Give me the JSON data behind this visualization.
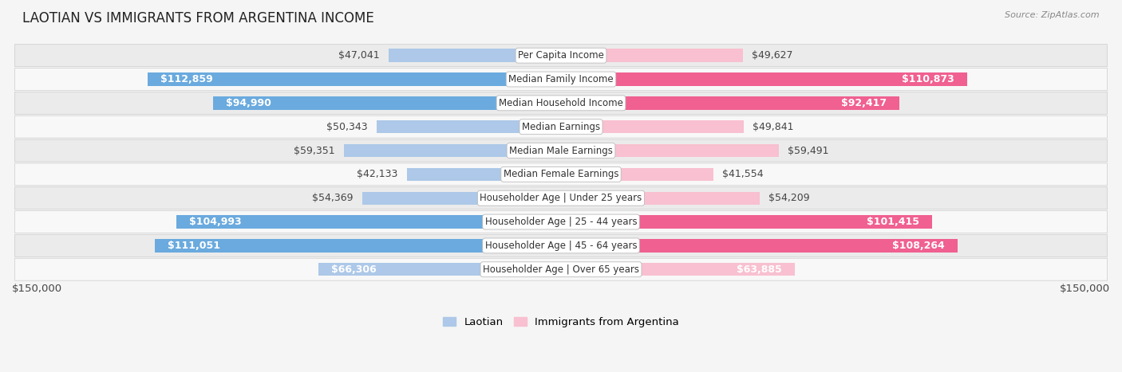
{
  "title": "LAOTIAN VS IMMIGRANTS FROM ARGENTINA INCOME",
  "source": "Source: ZipAtlas.com",
  "categories": [
    "Per Capita Income",
    "Median Family Income",
    "Median Household Income",
    "Median Earnings",
    "Median Male Earnings",
    "Median Female Earnings",
    "Householder Age | Under 25 years",
    "Householder Age | 25 - 44 years",
    "Householder Age | 45 - 64 years",
    "Householder Age | Over 65 years"
  ],
  "laotian_values": [
    47041,
    112859,
    94990,
    50343,
    59351,
    42133,
    54369,
    104993,
    111051,
    66306
  ],
  "argentina_values": [
    49627,
    110873,
    92417,
    49841,
    59491,
    41554,
    54209,
    101415,
    108264,
    63885
  ],
  "laotian_color_light": "#adc8e8",
  "laotian_color_dark": "#6aaade",
  "argentina_color_light": "#f8c0d0",
  "argentina_color_dark": "#f06090",
  "laotian_label": "Laotian",
  "argentina_label": "Immigrants from Argentina",
  "max_value": 150000,
  "x_label_left": "$150,000",
  "x_label_right": "$150,000",
  "background_color": "#f5f5f5",
  "row_bg_light": "#ebebeb",
  "row_bg_dark": "#e0e0e0",
  "label_font_size": 9,
  "title_font_size": 12,
  "value_label_inside_color": "#ffffff",
  "value_label_outside_color": "#444444",
  "inside_threshold": 60000
}
